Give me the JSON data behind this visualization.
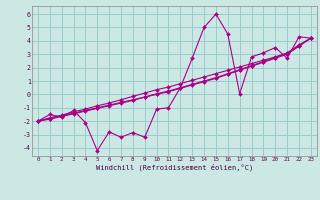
{
  "xlabel": "Windchill (Refroidissement éolien,°C)",
  "background_color": "#cce8e4",
  "grid_color": "#99cccc",
  "line_color": "#aa0088",
  "xlim": [
    -0.5,
    23.5
  ],
  "ylim": [
    -4.6,
    6.6
  ],
  "yticks": [
    -4,
    -3,
    -2,
    -1,
    0,
    1,
    2,
    3,
    4,
    5,
    6
  ],
  "xticks": [
    0,
    1,
    2,
    3,
    4,
    5,
    6,
    7,
    8,
    9,
    10,
    11,
    12,
    13,
    14,
    15,
    16,
    17,
    18,
    19,
    20,
    21,
    22,
    23
  ],
  "x": [
    0,
    1,
    2,
    3,
    4,
    5,
    6,
    7,
    8,
    9,
    10,
    11,
    12,
    13,
    14,
    15,
    16,
    17,
    18,
    19,
    20,
    21,
    22,
    23
  ],
  "y_jagged": [
    -2.0,
    -1.5,
    -1.7,
    -1.2,
    -2.1,
    -4.2,
    -2.8,
    -3.2,
    -2.85,
    -3.2,
    -1.1,
    -1.0,
    0.5,
    2.7,
    5.0,
    6.0,
    4.5,
    0.05,
    2.8,
    3.1,
    3.5,
    2.7,
    4.3,
    4.2
  ],
  "line1": [
    -2.0,
    -1.75,
    -1.55,
    -1.3,
    -1.1,
    -0.85,
    -0.65,
    -0.4,
    -0.15,
    0.1,
    0.35,
    0.55,
    0.8,
    1.05,
    1.3,
    1.55,
    1.8,
    2.05,
    2.3,
    2.55,
    2.8,
    3.1,
    3.7,
    4.2
  ],
  "line2": [
    -2.0,
    -1.8,
    -1.6,
    -1.4,
    -1.2,
    -1.0,
    -0.8,
    -0.6,
    -0.4,
    -0.2,
    0.0,
    0.2,
    0.45,
    0.7,
    0.95,
    1.2,
    1.5,
    1.8,
    2.1,
    2.4,
    2.7,
    3.0,
    3.6,
    4.2
  ],
  "line3": [
    -2.0,
    -1.85,
    -1.65,
    -1.45,
    -1.25,
    -1.05,
    -0.85,
    -0.65,
    -0.45,
    -0.2,
    0.05,
    0.25,
    0.5,
    0.75,
    1.0,
    1.25,
    1.55,
    1.85,
    2.15,
    2.45,
    2.75,
    3.05,
    3.62,
    4.2
  ]
}
